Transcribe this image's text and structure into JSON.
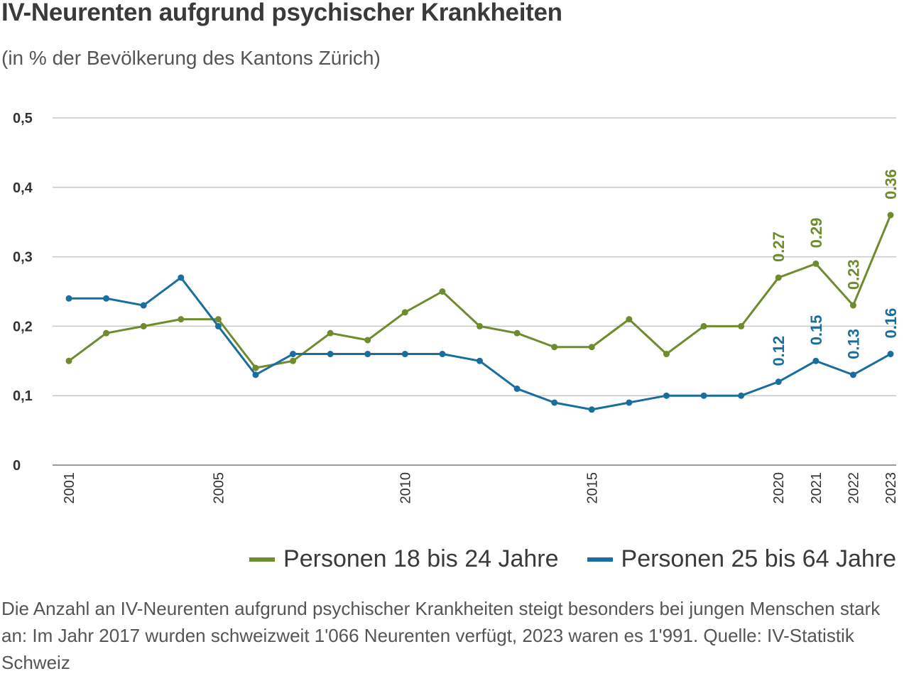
{
  "title": "IV-Neurenten aufgrund psychischer Krankheiten",
  "subtitle": "(in % der Bevölkerung des Kantons Zürich)",
  "caption": "Die Anzahl an IV-Neurenten aufgrund psychischer Krankheiten steigt besonders bei jungen Menschen stark an: Im Jahr 2017 wurden schweizweit 1'066 Neurenten verfügt, 2023 waren es 1'991. Quelle: IV-Statistik Schweiz",
  "chart_data": {
    "type": "line",
    "x": [
      2001,
      2002,
      2003,
      2004,
      2005,
      2006,
      2007,
      2008,
      2009,
      2010,
      2011,
      2012,
      2013,
      2014,
      2015,
      2016,
      2017,
      2018,
      2019,
      2020,
      2021,
      2022,
      2023
    ],
    "xlim": [
      2001,
      2023
    ],
    "ylim": [
      0,
      0.5
    ],
    "yticks": [
      0,
      0.1,
      0.2,
      0.3,
      0.4,
      0.5
    ],
    "ytick_labels": [
      "0",
      "0,1",
      "0,2",
      "0,3",
      "0,4",
      "0,5"
    ],
    "xticks": [
      2001,
      2005,
      2010,
      2015,
      2020,
      2021,
      2022,
      2023
    ],
    "xtick_labels": [
      "2001",
      "2005",
      "2010",
      "2015",
      "2020",
      "2021",
      "2022",
      "2023"
    ],
    "grid": "horizontal",
    "legend_position": "bottom-right",
    "series": [
      {
        "name": "Personen 18 bis 24 Jahre",
        "color": "#6e8b2e",
        "values": [
          0.15,
          0.19,
          0.2,
          0.21,
          0.21,
          0.14,
          0.15,
          0.19,
          0.18,
          0.22,
          0.25,
          0.2,
          0.19,
          0.17,
          0.17,
          0.21,
          0.16,
          0.2,
          0.2,
          0.27,
          0.29,
          0.23,
          0.36
        ],
        "data_labels": [
          {
            "x": 2020,
            "label": "0.27"
          },
          {
            "x": 2021,
            "label": "0.29"
          },
          {
            "x": 2022,
            "label": "0.23"
          },
          {
            "x": 2023,
            "label": "0.36"
          }
        ]
      },
      {
        "name": "Personen 25 bis 64 Jahre",
        "color": "#1a6e9e",
        "values": [
          0.24,
          0.24,
          0.23,
          0.27,
          0.2,
          0.13,
          0.16,
          0.16,
          0.16,
          0.16,
          0.16,
          0.15,
          0.11,
          0.09,
          0.08,
          0.09,
          0.1,
          0.1,
          0.1,
          0.12,
          0.15,
          0.13,
          0.16
        ],
        "data_labels": [
          {
            "x": 2020,
            "label": "0.12"
          },
          {
            "x": 2021,
            "label": "0.15"
          },
          {
            "x": 2022,
            "label": "0.13"
          },
          {
            "x": 2023,
            "label": "0.16"
          }
        ]
      }
    ]
  }
}
